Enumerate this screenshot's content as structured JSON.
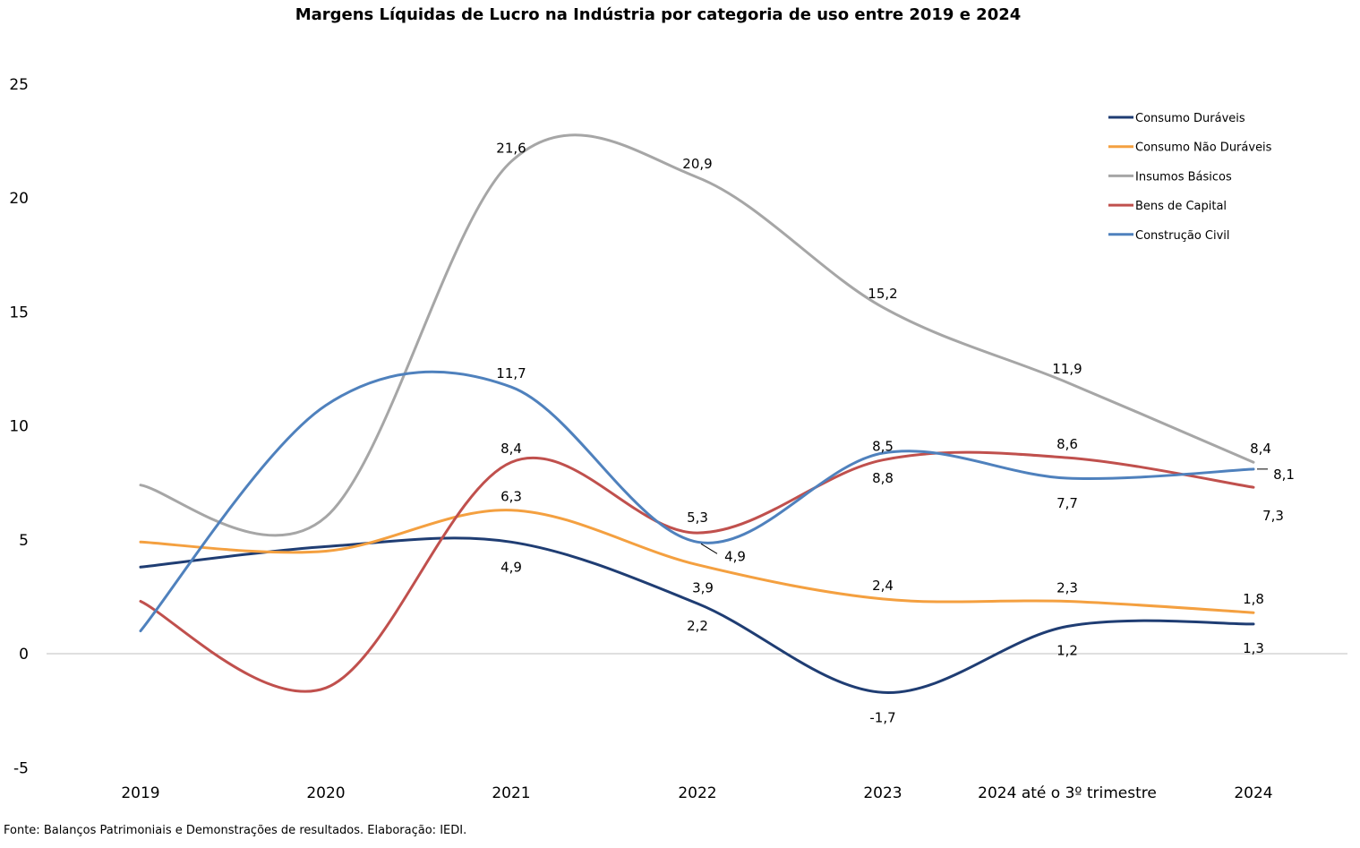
{
  "chart_data": {
    "type": "line",
    "title": "Margens Líquidas de Lucro na Indústria por categoria de uso entre 2019 e 2024",
    "categories": [
      "2019",
      "2020",
      "2021",
      "2022",
      "2023",
      "2024 até o 3º trimestre",
      "2024"
    ],
    "ylim": [
      -5,
      25
    ],
    "yticks": [
      -5,
      0,
      5,
      10,
      15,
      20,
      25
    ],
    "grid": false,
    "legend_position": "top-right",
    "smooth": true,
    "series": [
      {
        "name": "Consumo Duráveis",
        "color": "#1f3d73",
        "values": [
          3.8,
          4.7,
          4.9,
          2.2,
          -1.7,
          1.2,
          1.3
        ],
        "labels": [
          "",
          "",
          "4,9",
          "2,2",
          "-1,7",
          "1,2",
          "1,3"
        ]
      },
      {
        "name": "Consumo Não Duráveis",
        "color": "#f4a040",
        "values": [
          4.9,
          4.5,
          6.3,
          3.9,
          2.4,
          2.3,
          1.8
        ],
        "labels": [
          "",
          "",
          "6,3",
          "3,9",
          "2,4",
          "2,3",
          "1,8"
        ]
      },
      {
        "name": "Insumos Básicos",
        "color": "#a6a6a6",
        "values": [
          7.4,
          6.0,
          21.6,
          20.9,
          15.2,
          11.9,
          8.4
        ],
        "labels": [
          "",
          "",
          "21,6",
          "20,9",
          "15,2",
          "11,9",
          "8,4"
        ]
      },
      {
        "name": "Bens de Capital",
        "color": "#c0504d",
        "values": [
          2.3,
          -1.5,
          8.4,
          5.3,
          8.5,
          8.6,
          7.3
        ],
        "labels": [
          "",
          "",
          "8,4",
          "5,3",
          "8,5",
          "8,6",
          "7,3"
        ]
      },
      {
        "name": "Construção Civil",
        "color": "#4f81bd",
        "values": [
          1.0,
          10.9,
          11.7,
          4.9,
          8.8,
          7.7,
          8.1
        ],
        "labels": [
          "",
          "",
          "11,7",
          "4,9",
          "8,8",
          "7,7",
          "8,1"
        ]
      }
    ]
  },
  "source_note": "Fonte: Balanços Patrimoniais e Demonstrações de resultados. Elaboração: IEDI."
}
